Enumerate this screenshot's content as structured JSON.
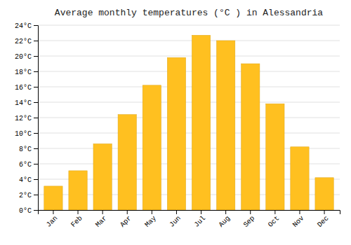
{
  "chart_data": {
    "type": "bar",
    "title": "Average monthly temperatures (°C ) in Alessandria",
    "categories": [
      "Jan",
      "Feb",
      "Mar",
      "Apr",
      "May",
      "Jun",
      "Jul",
      "Aug",
      "Sep",
      "Oct",
      "Nov",
      "Dec"
    ],
    "values": [
      3.1,
      5.1,
      8.6,
      12.4,
      16.2,
      19.8,
      22.7,
      22.0,
      19.0,
      13.8,
      8.2,
      4.2
    ],
    "color": "#FFC020",
    "ylim": [
      0,
      24
    ],
    "yticks": [
      {
        "value": 0,
        "label": "0°C"
      },
      {
        "value": 2,
        "label": "2°C"
      },
      {
        "value": 4,
        "label": "4°C"
      },
      {
        "value": 6,
        "label": "6°C"
      },
      {
        "value": 8,
        "label": "8°C"
      },
      {
        "value": 10,
        "label": "10°C"
      },
      {
        "value": 12,
        "label": "12°C"
      },
      {
        "value": 14,
        "label": "14°C"
      },
      {
        "value": 16,
        "label": "16°C"
      },
      {
        "value": 18,
        "label": "18°C"
      },
      {
        "value": 20,
        "label": "20°C"
      },
      {
        "value": 22,
        "label": "22°C"
      },
      {
        "value": 24,
        "label": "24°C"
      }
    ],
    "grid": true
  }
}
